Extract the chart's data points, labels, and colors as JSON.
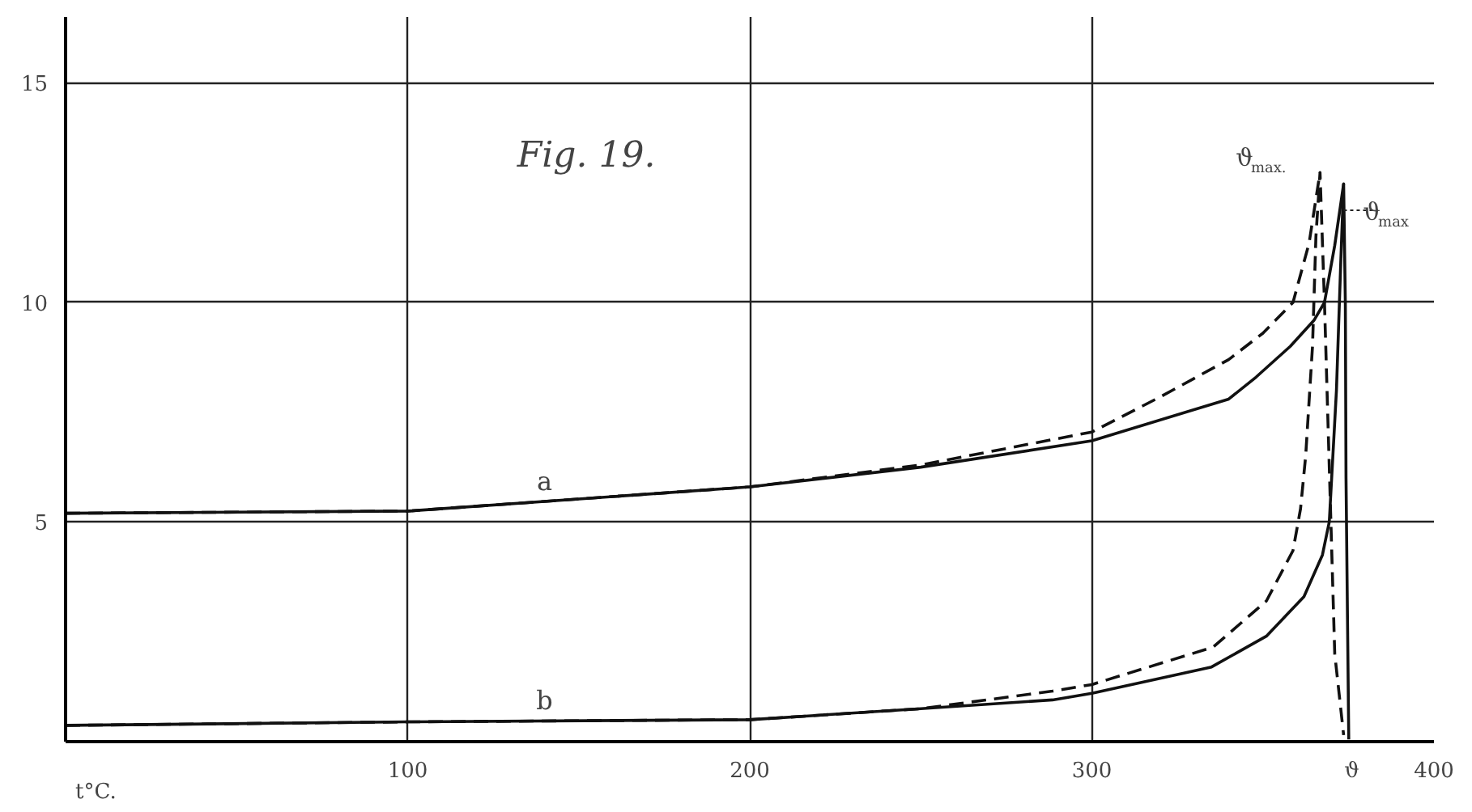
{
  "chart_data": {
    "type": "line",
    "title": "Fig. 19.",
    "xlabel": "t°C.",
    "xlim": [
      0,
      400
    ],
    "ylim": [
      0,
      16.5
    ],
    "xticks": [
      100,
      200,
      300,
      {
        "value": 376,
        "label": "ϑ"
      },
      400
    ],
    "yticks": [
      5,
      10,
      15
    ],
    "grid": true,
    "marker": "none",
    "series": [
      {
        "name": "a",
        "color": "#111111",
        "line_style": "solid",
        "x": [
          0,
          100,
          200,
          250,
          300,
          340,
          348,
          358,
          365,
          368,
          371,
          373.6
        ],
        "values": [
          5.2,
          5.25,
          5.8,
          6.25,
          6.85,
          7.8,
          8.3,
          9.0,
          9.6,
          10.0,
          11.3,
          12.7
        ]
      },
      {
        "color": "#111111",
        "line_style": "dashed",
        "x": [
          0,
          100,
          200,
          250,
          300,
          320,
          340,
          350,
          358.8,
          363.5,
          366.7
        ],
        "values": [
          5.2,
          5.25,
          5.8,
          6.3,
          7.05,
          7.85,
          8.7,
          9.3,
          10.0,
          11.35,
          12.96
        ]
      },
      {
        "name": "b",
        "color": "#111111",
        "line_style": "solid",
        "x": [
          0,
          100,
          200,
          250,
          288.5,
          300,
          335,
          351,
          362,
          367.4,
          369.4,
          371.5,
          372.8,
          373.6,
          374.1,
          374.3,
          375.1
        ],
        "values": [
          0.37,
          0.45,
          0.5,
          0.75,
          0.95,
          1.1,
          1.7,
          2.4,
          3.3,
          4.25,
          5.0,
          8.0,
          11.0,
          12.7,
          10.0,
          6.0,
          0.05
        ]
      },
      {
        "color": "#111111",
        "line_style": "dashed",
        "x": [
          0,
          100,
          200,
          250,
          288.5,
          300,
          335.4,
          351,
          358.8,
          361,
          362.5,
          364.5,
          365.5,
          366.7,
          368,
          369.5,
          371,
          373.6
        ],
        "values": [
          0.37,
          0.45,
          0.5,
          0.75,
          1.15,
          1.3,
          2.15,
          3.2,
          4.35,
          5.3,
          6.5,
          9.0,
          11.5,
          12.96,
          10.0,
          6.0,
          2.0,
          0.15
        ]
      }
    ],
    "annotations": [
      {
        "text": "ϑ$_{max.}$",
        "x": 366.7,
        "y": 12.96
      },
      {
        "text": "ϑ$_{max}$",
        "x": 373.6,
        "y": 12.1
      }
    ]
  }
}
